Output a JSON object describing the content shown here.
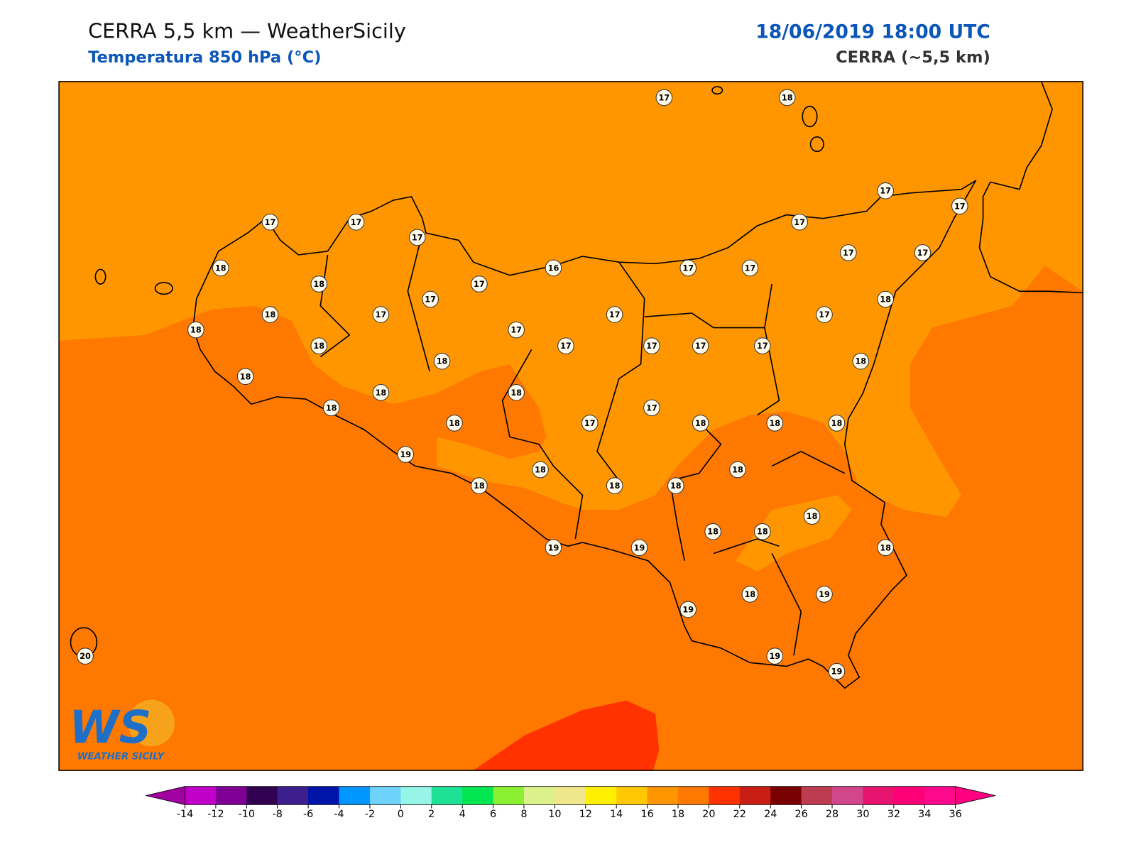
{
  "header": {
    "title": "CERRA 5,5 km — WeatherSicily",
    "subtitle": "Temperatura 850 hPa (°C)",
    "datetime": "18/06/2019 18:00 UTC",
    "model": "CERRA (~5,5 km)"
  },
  "logo": {
    "mark": "WS",
    "name": "WEATHER SICILY"
  },
  "stations": {
    "values": [
      17,
      18,
      17,
      17,
      17,
      17,
      17,
      17,
      17,
      17,
      18,
      16,
      17,
      17,
      18,
      17,
      17,
      18,
      18,
      17,
      17,
      17,
      18,
      17,
      18,
      17,
      17,
      17,
      17,
      18,
      18,
      18,
      18,
      18,
      18,
      17,
      18,
      17,
      18,
      18,
      18,
      19,
      18,
      18,
      18,
      18,
      18,
      18,
      18,
      18,
      19,
      19,
      18,
      18,
      19,
      19,
      20,
      19,
      19
    ]
  },
  "colorbar": {
    "ticks": [
      -14,
      -12,
      -10,
      -8,
      -6,
      -4,
      -2,
      0,
      2,
      4,
      6,
      8,
      10,
      12,
      14,
      16,
      18,
      20,
      22,
      24,
      26,
      28,
      30,
      32,
      34,
      36
    ],
    "colors": [
      "#c000c8",
      "#800096",
      "#320050",
      "#3c1e8c",
      "#0014aa",
      "#0096ff",
      "#6ed2fa",
      "#96f5e6",
      "#1ee196",
      "#00e650",
      "#8cf032",
      "#dcf08c",
      "#f0e68c",
      "#fff000",
      "#ffc800",
      "#ff9600",
      "#ff7800",
      "#ff3200",
      "#c81e14",
      "#780000",
      "#be3c50",
      "#d2468c",
      "#e6146e",
      "#ff0078",
      "#ff0a8c"
    ],
    "under_color": "#a000a0",
    "over_color": "#ff0080"
  }
}
